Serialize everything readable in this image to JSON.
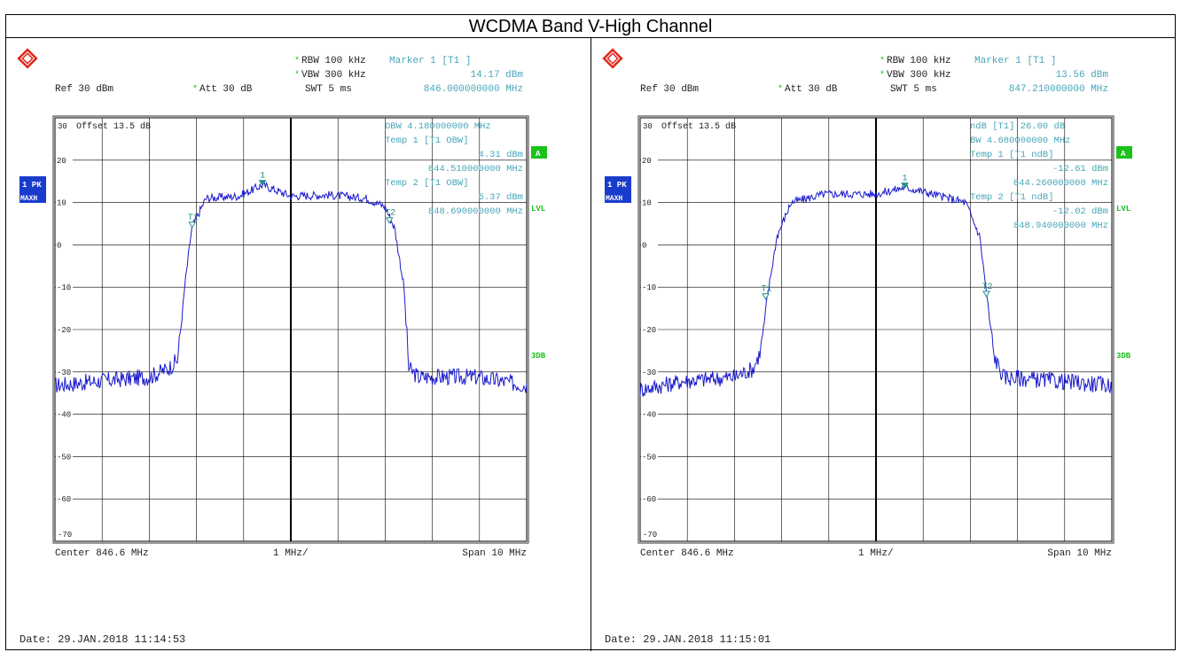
{
  "page_title": "WCDMA Band V-High Channel",
  "colors": {
    "trace": "#1a1acc",
    "readout": "#47a6b8",
    "marker": "#2a8f8a",
    "status_green": "#1bc21b",
    "badge_blue": "#1a3ccc",
    "grid": "#000000",
    "logo": "#e0261c"
  },
  "icons": {
    "logo": "rohde-schwarz-logo-icon",
    "marker": "marker-triangle-icon"
  },
  "side_labels": {
    "trace": "1 PK",
    "detector": "MAXH",
    "trigger": "A",
    "level": "LVL",
    "db": "3DB"
  },
  "panels": [
    {
      "settings": {
        "rbw": "RBW 100 kHz",
        "vbw": "VBW 300 kHz",
        "ref": "Ref  30 dBm",
        "att": "Att  30 dB",
        "swt": "SWT 5 ms",
        "star": "*"
      },
      "header": {
        "marker_label": "Marker 1 [T1 ]",
        "marker_level": "14.17 dBm",
        "marker_freq": "846.000000000 MHz"
      },
      "offset_label": "Offset  13.5 dB",
      "readout_lines": [
        "OBW  4.180000000 MHz",
        "Temp 1 [T1 OBW]",
        "4.31 dBm",
        "844.510000000 MHz",
        "Temp 2 [T1 OBW]",
        "5.37 dBm",
        "848.690000000 MHz"
      ],
      "footer": {
        "center": "Center 846.6 MHz",
        "div": "1 MHz/",
        "span": "Span 10 MHz"
      },
      "date": "Date: 29.JAN.2018  11:14:53"
    },
    {
      "settings": {
        "rbw": "RBW 100 kHz",
        "vbw": "VBW 300 kHz",
        "ref": "Ref  30 dBm",
        "att": "Att  30 dB",
        "swt": "SWT 5 ms",
        "star": "*"
      },
      "header": {
        "marker_label": "Marker 1 [T1 ]",
        "marker_level": "13.56 dBm",
        "marker_freq": "847.210000000 MHz"
      },
      "offset_label": "Offset  13.5 dB",
      "readout_lines": [
        "ndB [T1]   26.00 dB",
        "BW   4.680000000 MHz",
        "Temp 1 [T1 ndB]",
        "-12.61 dBm",
        "844.260000000 MHz",
        "Temp 2 [T1 ndB]",
        "-12.02 dBm",
        "848.940000000 MHz"
      ],
      "footer": {
        "center": "Center 846.6 MHz",
        "div": "1 MHz/",
        "span": "Span 10 MHz"
      },
      "date": "Date: 29.JAN.2018  11:15:01"
    }
  ],
  "chart_data": [
    {
      "type": "line",
      "title": "WCDMA Band V-High Channel",
      "xlim": [
        841.6,
        851.6
      ],
      "ylim": [
        -70,
        30
      ],
      "y_ticks": [
        30,
        20,
        10,
        0,
        -10,
        -20,
        -30,
        -40,
        -50,
        -60,
        -70
      ],
      "series": [
        {
          "x": [
            841.6,
            842.5,
            843.6,
            844.0,
            844.2,
            844.35,
            844.5,
            844.8,
            845.5,
            846.0,
            846.6,
            847.4,
            848.2,
            848.6,
            848.8,
            849.0,
            849.1,
            849.3,
            850.5,
            851.6
          ],
          "y": [
            -34,
            -33,
            -32,
            -30,
            -28,
            -10,
            4,
            11,
            11.5,
            14.17,
            11.5,
            11.8,
            11,
            9,
            4,
            -10,
            -30,
            -32,
            -32,
            -34
          ]
        }
      ],
      "markers": [
        {
          "label": "1",
          "x": 846.0,
          "y": 14.17
        },
        {
          "label": "T1",
          "x": 844.51,
          "y": 4.31
        },
        {
          "label": "T2",
          "x": 848.69,
          "y": 5.37
        }
      ]
    },
    {
      "type": "line",
      "title": "WCDMA Band V-High Channel",
      "xlim": [
        841.6,
        851.6
      ],
      "ylim": [
        -70,
        30
      ],
      "y_ticks": [
        30,
        20,
        10,
        0,
        -10,
        -20,
        -30,
        -40,
        -50,
        -60,
        -70
      ],
      "series": [
        {
          "x": [
            841.6,
            842.5,
            843.6,
            844.0,
            844.15,
            844.3,
            844.5,
            844.8,
            845.5,
            846.6,
            847.21,
            847.8,
            848.5,
            848.8,
            848.95,
            849.1,
            849.3,
            850.5,
            851.6
          ],
          "y": [
            -35,
            -33,
            -32,
            -30,
            -26,
            -12,
            2,
            10,
            12,
            12,
            13.56,
            12,
            10,
            2,
            -12,
            -27,
            -32,
            -33,
            -34
          ]
        }
      ],
      "markers": [
        {
          "label": "1",
          "x": 847.21,
          "y": 13.56
        },
        {
          "label": "T1",
          "x": 844.26,
          "y": -12.61
        },
        {
          "label": "T2",
          "x": 848.94,
          "y": -12.02
        }
      ]
    }
  ]
}
